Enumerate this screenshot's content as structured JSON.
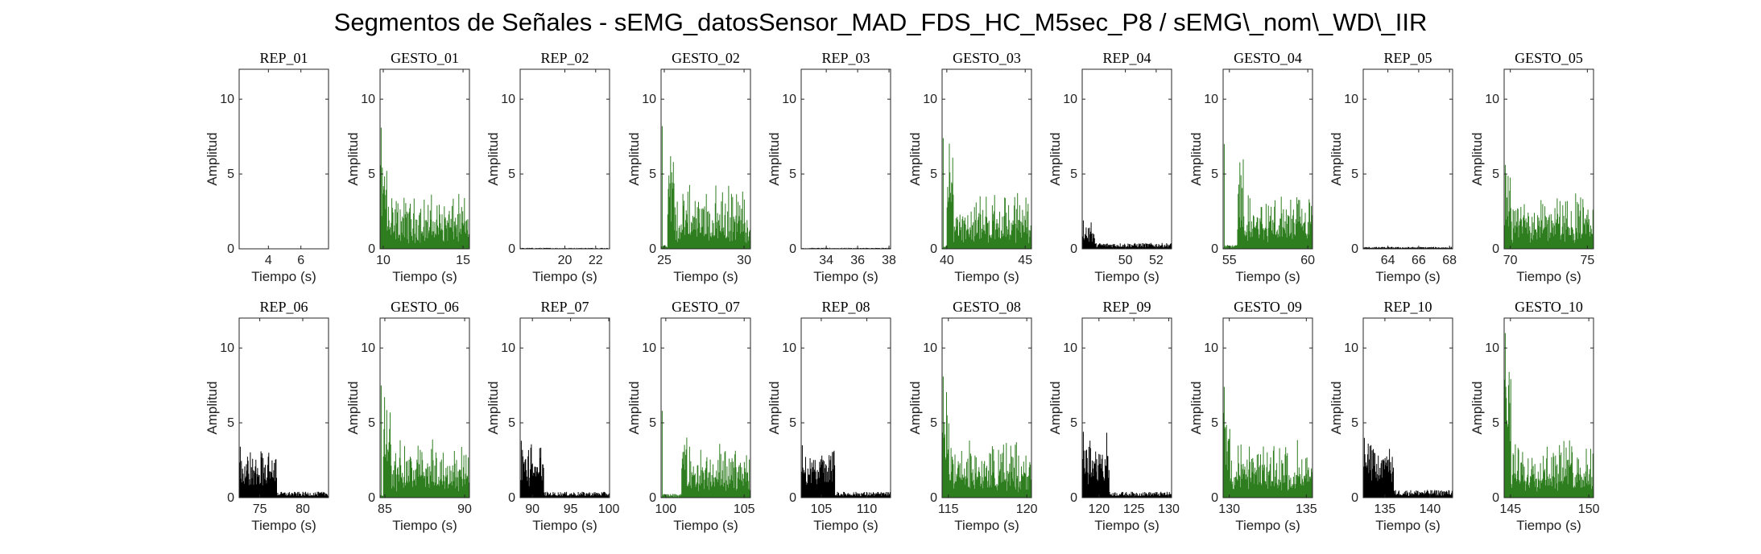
{
  "title": "Segmentos de Señales - sEMG_datosSensor_MAD_FDS_HC_M5sec_P8 / sEMG\\_nom\\_WD\\_IIR",
  "colors": {
    "rep": "#000000",
    "gesto": "#2e7d1f"
  },
  "chart_data": [
    {
      "type": "area",
      "title": "REP_01",
      "kind": "rep",
      "xlim": [
        2.2,
        7.7
      ],
      "xticks": [
        4,
        6
      ],
      "ylim": [
        0,
        12
      ],
      "yticks": [
        0,
        5,
        10
      ],
      "xlabel": "Tiempo (s)",
      "ylabel": "Amplitud",
      "signal": {
        "active": null,
        "baseline": 0.0,
        "peak": 0.0,
        "activity_level": 0.0
      }
    },
    {
      "type": "area",
      "title": "GESTO_01",
      "kind": "gesto",
      "xlim": [
        9.8,
        15.4
      ],
      "xticks": [
        10,
        15
      ],
      "ylim": [
        0,
        12
      ],
      "yticks": [
        0,
        5,
        10
      ],
      "xlabel": "Tiempo (s)",
      "ylabel": "Amplitud",
      "signal": {
        "active": [
          9.8,
          15.4
        ],
        "baseline": 0.2,
        "peak": 8.1,
        "activity_level": 2.2
      }
    },
    {
      "type": "area",
      "title": "REP_02",
      "kind": "rep",
      "xlim": [
        17.1,
        22.9
      ],
      "xticks": [
        20,
        22
      ],
      "ylim": [
        0,
        12
      ],
      "yticks": [
        0,
        5,
        10
      ],
      "xlabel": "Tiempo (s)",
      "ylabel": "Amplitud",
      "signal": {
        "active": null,
        "baseline": 0.05,
        "peak": 0.15,
        "activity_level": 0.05
      }
    },
    {
      "type": "area",
      "title": "GESTO_02",
      "kind": "gesto",
      "xlim": [
        24.8,
        30.4
      ],
      "xticks": [
        25,
        30
      ],
      "ylim": [
        0,
        12
      ],
      "yticks": [
        0,
        5,
        10
      ],
      "xlabel": "Tiempo (s)",
      "ylabel": "Amplitud",
      "signal": {
        "active": [
          25.2,
          30.4
        ],
        "baseline": 0.2,
        "peak": 8.2,
        "activity_level": 2.5
      }
    },
    {
      "type": "area",
      "title": "REP_03",
      "kind": "rep",
      "xlim": [
        32.4,
        38.1
      ],
      "xticks": [
        34,
        36,
        38
      ],
      "ylim": [
        0,
        12
      ],
      "yticks": [
        0,
        5,
        10
      ],
      "xlabel": "Tiempo (s)",
      "ylabel": "Amplitud",
      "signal": {
        "active": null,
        "baseline": 0.05,
        "peak": 0.1,
        "activity_level": 0.05
      }
    },
    {
      "type": "area",
      "title": "GESTO_03",
      "kind": "gesto",
      "xlim": [
        39.7,
        45.4
      ],
      "xticks": [
        40,
        45
      ],
      "ylim": [
        0,
        12
      ],
      "yticks": [
        0,
        5,
        10
      ],
      "xlabel": "Tiempo (s)",
      "ylabel": "Amplitud",
      "signal": {
        "active": [
          40.0,
          45.4
        ],
        "baseline": 0.2,
        "peak": 7.4,
        "activity_level": 2.3
      }
    },
    {
      "type": "area",
      "title": "REP_04",
      "kind": "rep",
      "xlim": [
        47.2,
        53.0
      ],
      "xticks": [
        50,
        52
      ],
      "ylim": [
        0,
        12
      ],
      "yticks": [
        0,
        5,
        10
      ],
      "xlabel": "Tiempo (s)",
      "ylabel": "Amplitud",
      "signal": {
        "active": [
          47.2,
          48.0
        ],
        "baseline": 0.3,
        "peak": 1.9,
        "activity_level": 0.9
      }
    },
    {
      "type": "area",
      "title": "GESTO_04",
      "kind": "gesto",
      "xlim": [
        54.6,
        60.3
      ],
      "xticks": [
        55,
        60
      ],
      "ylim": [
        0,
        12
      ],
      "yticks": [
        0,
        5,
        10
      ],
      "xlabel": "Tiempo (s)",
      "ylabel": "Amplitud",
      "signal": {
        "active": [
          55.5,
          60.3
        ],
        "baseline": 0.2,
        "peak": 7.0,
        "activity_level": 2.2
      }
    },
    {
      "type": "area",
      "title": "REP_05",
      "kind": "rep",
      "xlim": [
        62.4,
        68.2
      ],
      "xticks": [
        64,
        66,
        68
      ],
      "ylim": [
        0,
        12
      ],
      "yticks": [
        0,
        5,
        10
      ],
      "xlabel": "Tiempo (s)",
      "ylabel": "Amplitud",
      "signal": {
        "active": null,
        "baseline": 0.1,
        "peak": 0.6,
        "activity_level": 0.1
      }
    },
    {
      "type": "area",
      "title": "GESTO_05",
      "kind": "gesto",
      "xlim": [
        69.6,
        75.4
      ],
      "xticks": [
        70,
        75
      ],
      "ylim": [
        0,
        12
      ],
      "yticks": [
        0,
        5,
        10
      ],
      "xlabel": "Tiempo (s)",
      "ylabel": "Amplitud",
      "signal": {
        "active": [
          69.6,
          75.4
        ],
        "baseline": 0.2,
        "peak": 5.6,
        "activity_level": 2.3
      }
    },
    {
      "type": "area",
      "title": "REP_06",
      "kind": "rep",
      "xlim": [
        72.6,
        83.0
      ],
      "xticks": [
        75,
        80
      ],
      "ylim": [
        0,
        12
      ],
      "yticks": [
        0,
        5,
        10
      ],
      "xlabel": "Tiempo (s)",
      "ylabel": "Amplitud",
      "signal": {
        "active": [
          72.6,
          77.0
        ],
        "baseline": 0.3,
        "peak": 3.4,
        "activity_level": 2.4
      }
    },
    {
      "type": "area",
      "title": "GESTO_06",
      "kind": "gesto",
      "xlim": [
        84.7,
        90.3
      ],
      "xticks": [
        85,
        90
      ],
      "ylim": [
        0,
        12
      ],
      "yticks": [
        0,
        5,
        10
      ],
      "xlabel": "Tiempo (s)",
      "ylabel": "Amplitud",
      "signal": {
        "active": [
          84.9,
          90.3
        ],
        "baseline": 0.2,
        "peak": 7.5,
        "activity_level": 2.3
      }
    },
    {
      "type": "area",
      "title": "REP_07",
      "kind": "rep",
      "xlim": [
        88.4,
        100.1
      ],
      "xticks": [
        90,
        95,
        100
      ],
      "ylim": [
        0,
        12
      ],
      "yticks": [
        0,
        5,
        10
      ],
      "xlabel": "Tiempo (s)",
      "ylabel": "Amplitud",
      "signal": {
        "active": [
          88.4,
          91.5
        ],
        "baseline": 0.3,
        "peak": 3.8,
        "activity_level": 2.2
      }
    },
    {
      "type": "area",
      "title": "GESTO_07",
      "kind": "gesto",
      "xlim": [
        99.7,
        105.4
      ],
      "xticks": [
        100,
        105
      ],
      "ylim": [
        0,
        12
      ],
      "yticks": [
        0,
        5,
        10
      ],
      "xlabel": "Tiempo (s)",
      "ylabel": "Amplitud",
      "signal": {
        "active": [
          101.0,
          105.4
        ],
        "baseline": 0.2,
        "peak": 5.8,
        "activity_level": 2.2
      }
    },
    {
      "type": "area",
      "title": "REP_08",
      "kind": "rep",
      "xlim": [
        102.8,
        112.6
      ],
      "xticks": [
        105,
        110
      ],
      "ylim": [
        0,
        12
      ],
      "yticks": [
        0,
        5,
        10
      ],
      "xlabel": "Tiempo (s)",
      "ylabel": "Amplitud",
      "signal": {
        "active": [
          102.8,
          106.5
        ],
        "baseline": 0.3,
        "peak": 3.5,
        "activity_level": 2.4
      }
    },
    {
      "type": "area",
      "title": "GESTO_08",
      "kind": "gesto",
      "xlim": [
        114.6,
        120.3
      ],
      "xticks": [
        115,
        120
      ],
      "ylim": [
        0,
        12
      ],
      "yticks": [
        0,
        5,
        10
      ],
      "xlabel": "Tiempo (s)",
      "ylabel": "Amplitud",
      "signal": {
        "active": [
          114.6,
          120.3
        ],
        "baseline": 0.2,
        "peak": 8.1,
        "activity_level": 2.3
      }
    },
    {
      "type": "area",
      "title": "REP_09",
      "kind": "rep",
      "xlim": [
        117.6,
        130.4
      ],
      "xticks": [
        120,
        125,
        130
      ],
      "ylim": [
        0,
        12
      ],
      "yticks": [
        0,
        5,
        10
      ],
      "xlabel": "Tiempo (s)",
      "ylabel": "Amplitud",
      "signal": {
        "active": [
          117.6,
          121.5
        ],
        "baseline": 0.3,
        "peak": 4.4,
        "activity_level": 2.5
      }
    },
    {
      "type": "area",
      "title": "GESTO_09",
      "kind": "gesto",
      "xlim": [
        129.6,
        135.4
      ],
      "xticks": [
        130,
        135
      ],
      "ylim": [
        0,
        12
      ],
      "yticks": [
        0,
        5,
        10
      ],
      "xlabel": "Tiempo (s)",
      "ylabel": "Amplitud",
      "signal": {
        "active": [
          129.6,
          135.4
        ],
        "baseline": 0.2,
        "peak": 7.4,
        "activity_level": 2.3
      }
    },
    {
      "type": "area",
      "title": "REP_10",
      "kind": "rep",
      "xlim": [
        132.6,
        142.5
      ],
      "xticks": [
        135,
        140
      ],
      "ylim": [
        0,
        12
      ],
      "yticks": [
        0,
        5,
        10
      ],
      "xlabel": "Tiempo (s)",
      "ylabel": "Amplitud",
      "signal": {
        "active": [
          132.6,
          136.0
        ],
        "baseline": 0.4,
        "peak": 4.0,
        "activity_level": 2.4
      }
    },
    {
      "type": "area",
      "title": "GESTO_10",
      "kind": "gesto",
      "xlim": [
        144.6,
        150.3
      ],
      "xticks": [
        145,
        150
      ],
      "ylim": [
        0,
        12
      ],
      "yticks": [
        0,
        5,
        10
      ],
      "xlabel": "Tiempo (s)",
      "ylabel": "Amplitud",
      "signal": {
        "active": [
          144.6,
          150.3
        ],
        "baseline": 0.2,
        "peak": 11.0,
        "activity_level": 2.4
      }
    }
  ]
}
